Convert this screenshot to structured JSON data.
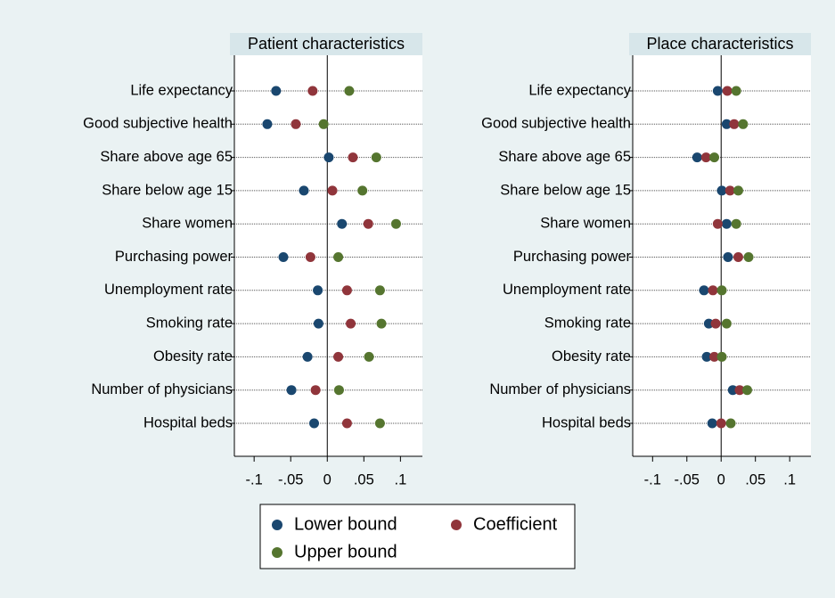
{
  "chart_data": [
    {
      "type": "dot",
      "title": "Patient characteristics",
      "categories": [
        "Life expectancy",
        "Good subjective health",
        "Share above age 65",
        "Share below age 15",
        "Share women",
        "Purchasing power",
        "Unemployment rate",
        "Smoking rate",
        "Obesity rate",
        "Number of physicians",
        "Hospital beds"
      ],
      "series": [
        {
          "name": "Lower bound",
          "color": "#1a476f",
          "values": [
            -0.07,
            -0.082,
            0.002,
            -0.032,
            0.02,
            -0.06,
            -0.013,
            -0.012,
            -0.027,
            -0.049,
            -0.018
          ]
        },
        {
          "name": "Coefficient",
          "color": "#90353b",
          "values": [
            -0.02,
            -0.043,
            0.035,
            0.007,
            0.056,
            -0.023,
            0.027,
            0.032,
            0.015,
            -0.016,
            0.027
          ]
        },
        {
          "name": "Upper bound",
          "color": "#55752f",
          "values": [
            0.03,
            -0.005,
            0.067,
            0.048,
            0.094,
            0.015,
            0.072,
            0.074,
            0.057,
            0.016,
            0.072
          ]
        }
      ],
      "xlim": [
        -0.127,
        0.13
      ],
      "xticks": [
        {
          "value": -0.1,
          "label": "-.1"
        },
        {
          "value": -0.05,
          "label": "-.05"
        },
        0,
        {
          "value": 0.05,
          "label": ".05"
        },
        {
          "value": 0.1,
          "label": ".1"
        }
      ]
    },
    {
      "type": "dot",
      "title": "Place characteristics",
      "categories": [
        "Life expectancy",
        "Good subjective health",
        "Share above age 65",
        "Share below age 15",
        "Share women",
        "Purchasing power",
        "Unemployment rate",
        "Smoking rate",
        "Obesity rate",
        "Number of physicians",
        "Hospital beds"
      ],
      "series": [
        {
          "color": "#1a476f",
          "values": [
            -0.005,
            0.008,
            -0.035,
            0.001,
            0.008,
            0.01,
            -0.025,
            -0.018,
            -0.021,
            0.017,
            -0.013
          ]
        },
        {
          "color": "#90353b",
          "values": [
            0.009,
            0.019,
            -0.022,
            0.013,
            -0.005,
            0.025,
            -0.012,
            -0.008,
            -0.01,
            0.027,
            0
          ]
        },
        {
          "color": "#55752f",
          "values": [
            0.022,
            0.032,
            -0.01,
            0.025,
            0.022,
            0.04,
            0.001,
            0.008,
            0.001,
            0.038,
            0.014
          ]
        }
      ],
      "xlim": [
        -0.129,
        0.131
      ],
      "xticks": [
        {
          "value": -0.1,
          "label": "-.1"
        },
        {
          "value": -0.05,
          "label": "-.05"
        },
        0,
        {
          "value": 0.05,
          "label": ".05"
        },
        {
          "value": 0.1,
          "label": ".1"
        }
      ]
    }
  ]
}
